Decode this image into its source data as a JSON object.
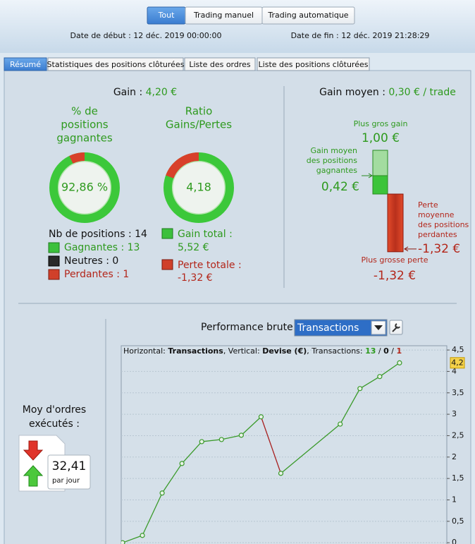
{
  "filters": [
    "Tout",
    "Trading manuel",
    "Trading automatique"
  ],
  "selected_filter": 0,
  "dates": {
    "start": "Date de début :  12 déc. 2019 00:00:00",
    "end": "Date de fin :  12 déc. 2019 21:28:29"
  },
  "tabs": [
    "Résumé",
    "Statistiques des positions clôturées",
    "Liste des ordres",
    "Liste des positions clôturées"
  ],
  "selected_tab": 0,
  "summary": {
    "gain_label": "Gain :",
    "gain_value": "4,20 €",
    "win_rate": {
      "label_lines": [
        "% de",
        "positions",
        "gagnantes"
      ],
      "value": 92.86,
      "value_label": "92,86 %"
    },
    "ratio": {
      "label_lines": [
        "Ratio",
        "Gains/Pertes"
      ],
      "value": 4.18,
      "value_label": "4,18"
    },
    "positions": "Nb de positions : 14",
    "winners": "Gagnantes : 13",
    "neutral": "Neutres : 0",
    "losers": "Perdantes : 1",
    "total_gain": [
      "Gain total :",
      "5,52 €"
    ],
    "total_loss": [
      "Perte totale :",
      "-1,32 €"
    ]
  },
  "average": {
    "title": "Gain moyen :",
    "title_value": "0,30 € / trade",
    "max_gain": {
      "label": "Plus gros gain",
      "value": 1.0,
      "value_label": "1,00 €"
    },
    "avg_gain": {
      "label_lines": [
        "Gain moyen",
        "des positions",
        "gagnantes"
      ],
      "value": 0.42,
      "value_label": "0,42 €"
    },
    "avg_loss": {
      "label_lines": [
        "Perte",
        "moyenne",
        "des positions",
        "perdantes"
      ],
      "value": -1.32,
      "value_label": "-1,32 €"
    },
    "max_loss": {
      "label": "Plus grosse perte",
      "value": -1.32,
      "value_label": "-1,32 €"
    }
  },
  "orders": {
    "label_lines": [
      "Moy d'ordres",
      "exécutés :"
    ],
    "value": "32,41",
    "unit": "par jour"
  },
  "performance": {
    "label": "Performance brute",
    "select": "Transactions"
  },
  "chart_data": {
    "type": "line",
    "legend_parts": [
      "Horizontal: ",
      "Transactions",
      ", Vertical: ",
      "Devise (€)",
      ", Transactions: ",
      "13",
      " / ",
      "0",
      " / ",
      "1"
    ],
    "x": [
      0,
      1,
      2,
      3,
      4,
      5,
      6,
      7,
      8,
      11,
      12,
      13,
      14
    ],
    "series": [
      {
        "color": "#3a9a2a",
        "down_color": "#a82020",
        "values": [
          0,
          0.17,
          1.16,
          1.85,
          2.36,
          2.41,
          2.51,
          2.94,
          1.62,
          2.77,
          3.6,
          3.88,
          4.2
        ]
      }
    ],
    "current_label": "4,2",
    "xlim": [
      -0.07,
      16.39
    ],
    "ylim": [
      -0.03,
      4.6
    ],
    "yticks": [
      {
        "value": 4.5,
        "label": "4,5"
      },
      4,
      {
        "value": 3.5,
        "label": "3,5"
      },
      3,
      {
        "value": 2.5,
        "label": "2,5"
      },
      2,
      {
        "value": 1.5,
        "label": "1,5"
      },
      1,
      {
        "value": 0.5,
        "label": "0,5"
      },
      0
    ],
    "grid": true
  }
}
